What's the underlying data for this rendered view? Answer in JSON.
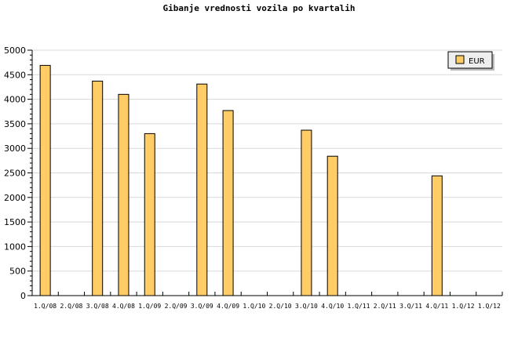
{
  "chart_data": {
    "type": "bar",
    "title": "Gibanje vrednosti vozila po kvartalih",
    "categories": [
      "1.Q/08",
      "2.Q/08",
      "3.Q/08",
      "4.Q/08",
      "1.Q/09",
      "2.Q/09",
      "3.Q/09",
      "4.Q/09",
      "1.Q/10",
      "2.Q/10",
      "3.Q/10",
      "4.Q/10",
      "1.Q/11",
      "2.Q/11",
      "3.Q/11",
      "4.Q/11",
      "1.Q/12",
      "1.Q/12"
    ],
    "series": [
      {
        "name": "EUR",
        "values": [
          4690,
          0,
          4370,
          4100,
          3300,
          0,
          4310,
          3770,
          0,
          0,
          3370,
          2840,
          0,
          0,
          0,
          2440,
          0,
          0
        ]
      }
    ],
    "ylim": [
      0,
      5000
    ],
    "yticks": [
      0,
      500,
      1000,
      1500,
      2000,
      2500,
      3000,
      3500,
      4000,
      4500,
      5000
    ],
    "grid": true,
    "legend": "top-right",
    "colors": {
      "bar": "#ffcc66",
      "grid": "#d8d8d8"
    }
  }
}
